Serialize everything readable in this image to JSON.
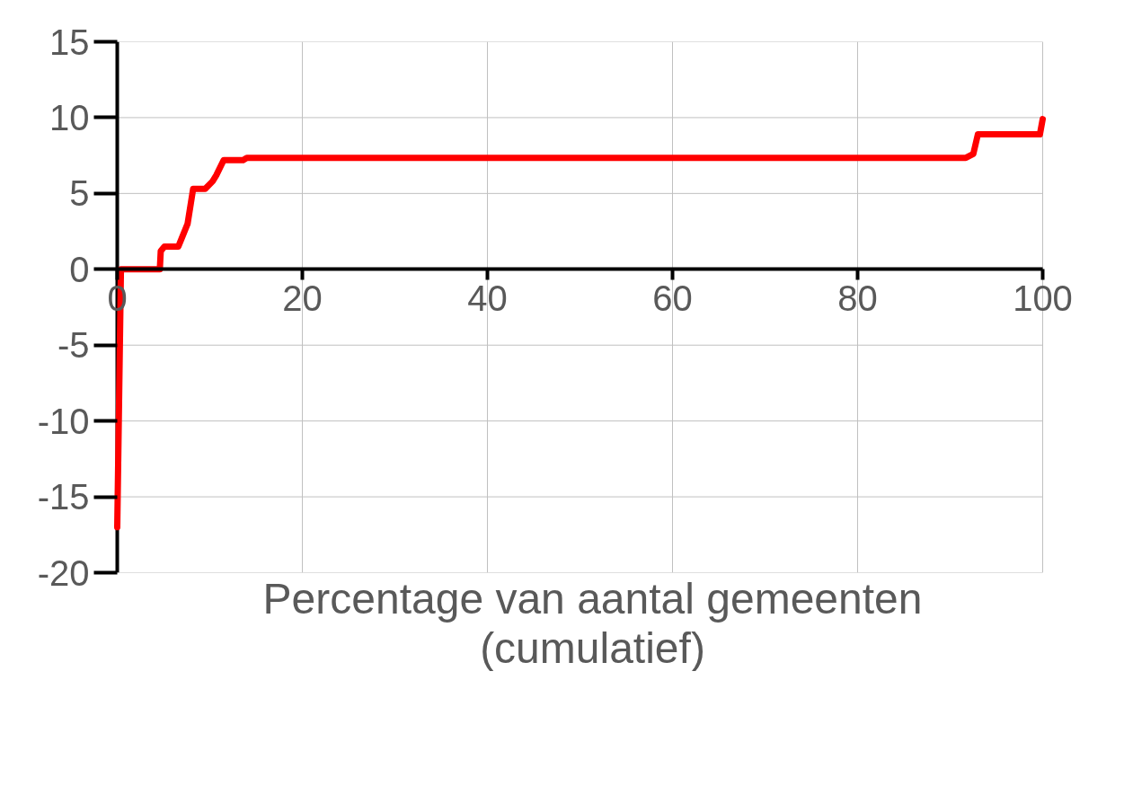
{
  "chart_data": {
    "type": "line",
    "xlabel": "Percentage van aantal gemeenten\n(cumulatief)",
    "x": [
      0,
      0.4,
      4.6,
      4.7,
      5.1,
      6.6,
      7.0,
      7.6,
      8.2,
      9.5,
      10.3,
      10.7,
      11.5,
      13.6,
      14.0,
      91.7,
      92.5,
      93.0,
      99.7,
      100
    ],
    "series": [
      {
        "color": "#ff0000",
        "values": [
          -17.0,
          0,
          0,
          1.2,
          1.5,
          1.5,
          2.1,
          3.0,
          5.3,
          5.3,
          5.8,
          6.2,
          7.2,
          7.2,
          7.35,
          7.35,
          7.6,
          8.9,
          8.9,
          9.9
        ]
      }
    ],
    "xlim": [
      0,
      100
    ],
    "xticks": [
      0,
      20,
      40,
      60,
      80,
      100
    ],
    "ylim": [
      -20,
      15
    ],
    "yticks": [
      -20,
      -15,
      -10,
      -5,
      0,
      5,
      10,
      15
    ],
    "grid": true,
    "marker": "none",
    "line_style": "solid"
  }
}
